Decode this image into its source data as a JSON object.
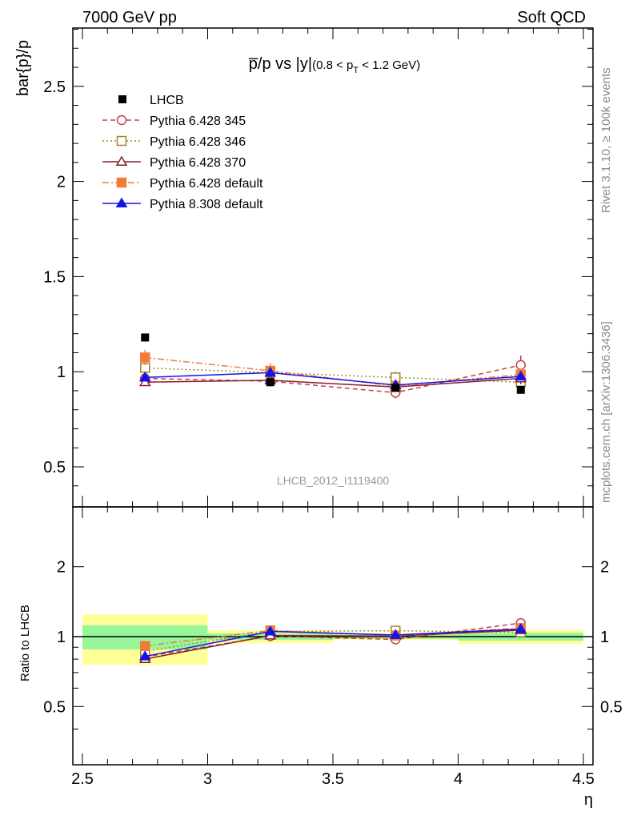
{
  "header": {
    "left": "7000 GeV pp",
    "right": "Soft QCD"
  },
  "side_labels": {
    "rivet": "Rivet 3.1.10, ≥ 100k events",
    "mcplots": "mcplots.cern.ch [arXiv:1306.3436]"
  },
  "chart_data": {
    "type": "scatter",
    "title_main": "p̅/p vs |y|",
    "title_sub_prefix": "(0.8 < p",
    "title_sub_subscript": "T",
    "title_sub_suffix": " < 1.2 GeV)",
    "analysis_id": "LHCB_2012_I1119400",
    "xlabel": "η",
    "ylabel": "bar{p}/p",
    "ratio_ylabel": "Ratio to LHCB",
    "xlim": [
      2.5,
      4.5
    ],
    "ylim": [
      0.3,
      2.8
    ],
    "ratio_ylim": [
      0.35,
      2.3
    ],
    "x_ticks": [
      "2.5",
      "3",
      "3.5",
      "4",
      "4.5"
    ],
    "y_ticks": [
      "0.5",
      "1",
      "1.5",
      "2",
      "2.5"
    ],
    "ratio_y_ticks": [
      "0.5",
      "1",
      "2"
    ],
    "legend_position": "top-left",
    "bins": [
      {
        "lo": 2.5,
        "hi": 3.0
      },
      {
        "lo": 3.0,
        "hi": 3.5
      },
      {
        "lo": 3.5,
        "hi": 4.0
      },
      {
        "lo": 4.0,
        "hi": 4.5
      }
    ],
    "data": {
      "name": "LHCB",
      "x": [
        2.75,
        3.25,
        3.75,
        4.25
      ],
      "y": [
        1.18,
        0.945,
        0.915,
        0.905
      ],
      "band_stat": [
        0.14,
        0.03,
        0.02,
        0.035
      ],
      "band_total": [
        0.29,
        0.06,
        0.03,
        0.065
      ]
    },
    "series": [
      {
        "name": "Pythia 6.428 345",
        "color": "#c0404a",
        "marker": "open-circle",
        "dash": "6,4",
        "x": [
          2.75,
          3.25,
          3.75,
          4.25
        ],
        "y": [
          0.965,
          0.95,
          0.89,
          1.035
        ],
        "err": [
          0.02,
          0.02,
          0.03,
          0.05
        ]
      },
      {
        "name": "Pythia 6.428 346",
        "color": "#a08628",
        "marker": "open-square",
        "dash": "2,3",
        "x": [
          2.75,
          3.25,
          3.75,
          4.25
        ],
        "y": [
          1.02,
          0.995,
          0.97,
          0.945
        ],
        "err": [
          0.02,
          0.02,
          0.03,
          0.03
        ]
      },
      {
        "name": "Pythia 6.428 370",
        "color": "#8b1a2c",
        "marker": "open-triangle",
        "dash": "",
        "x": [
          2.75,
          3.25,
          3.75,
          4.25
        ],
        "y": [
          0.945,
          0.955,
          0.92,
          0.965
        ],
        "err": [
          0.02,
          0.02,
          0.02,
          0.03
        ]
      },
      {
        "name": "Pythia 6.428 default",
        "color": "#f07c3c",
        "marker": "filled-square",
        "dash": "8,3,2,3",
        "x": [
          2.75,
          3.25,
          3.75,
          4.25
        ],
        "y": [
          1.075,
          1.005,
          0.925,
          0.985
        ],
        "err": [
          0.04,
          0.04,
          0.03,
          0.03
        ]
      },
      {
        "name": "Pythia 8.308 default",
        "color": "#1414e6",
        "marker": "filled-triangle",
        "dash": "",
        "x": [
          2.75,
          3.25,
          3.75,
          4.25
        ],
        "y": [
          0.97,
          0.995,
          0.93,
          0.975
        ],
        "err": [
          0.02,
          0.02,
          0.02,
          0.02
        ]
      }
    ]
  }
}
